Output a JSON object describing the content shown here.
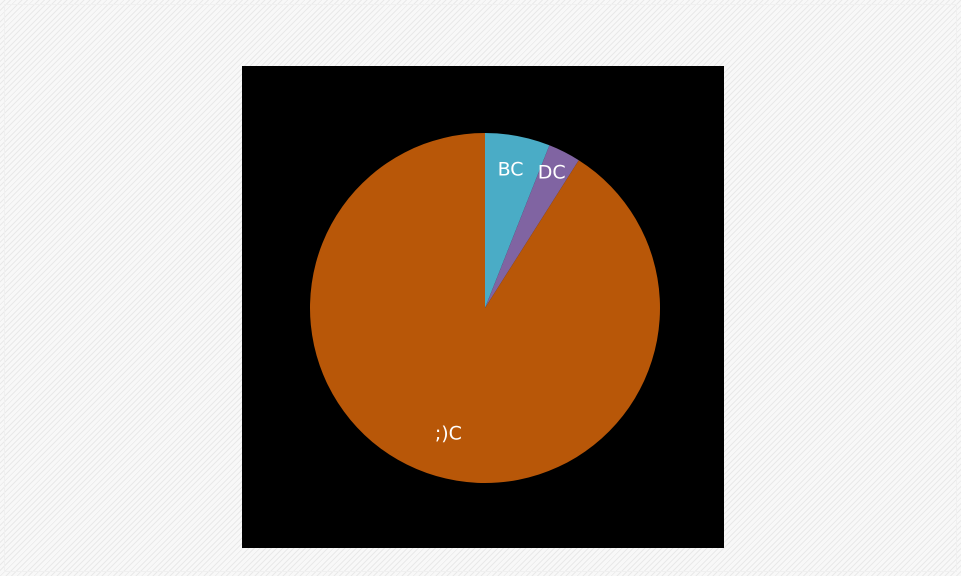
{
  "chart_data": {
    "type": "pie",
    "title": "",
    "start_angle_deg": 0,
    "direction": "clockwise",
    "legend": "none",
    "slices": [
      {
        "label": "BC",
        "value": 6,
        "color": "#4aacc6"
      },
      {
        "label": "DC",
        "value": 3,
        "color": "#8064a2"
      },
      {
        "label": ";)C",
        "value": 91,
        "color": "#b85708"
      }
    ]
  },
  "colors": {
    "plot_background": "#000000",
    "page_background": "#f6f6f6"
  }
}
